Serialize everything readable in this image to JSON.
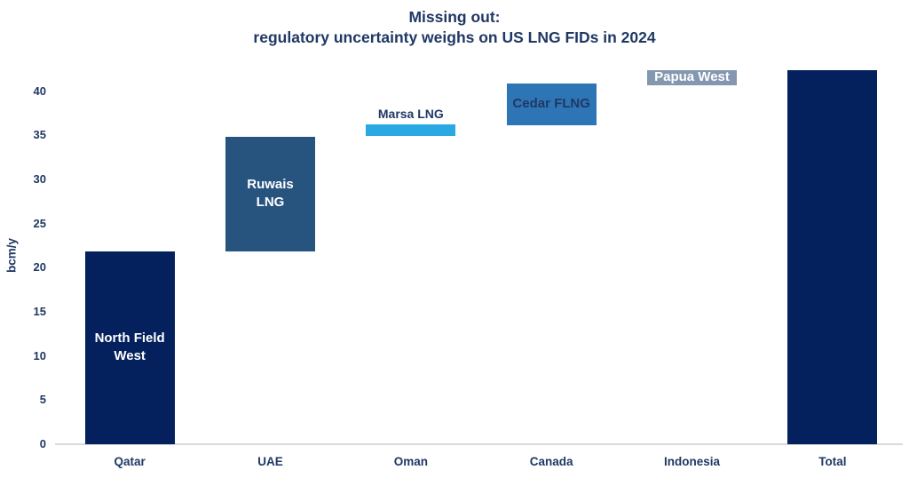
{
  "title": {
    "line1": "Missing out:",
    "line2": "regulatory uncertainty weighs on US LNG FIDs in 2024"
  },
  "chart_data": {
    "type": "bar",
    "subtype": "waterfall",
    "title": "Missing out: regulatory uncertainty weighs on US LNG FIDs in 2024",
    "xlabel": "",
    "ylabel": "bcm/y",
    "ylim": [
      0,
      42.5
    ],
    "yticks": [
      0,
      5,
      10,
      15,
      20,
      25,
      30,
      35,
      40
    ],
    "grid": false,
    "legend": "none",
    "categories": [
      "Qatar",
      "UAE",
      "Oman",
      "Canada",
      "Indonesia",
      "Total"
    ],
    "bars": [
      {
        "category": "Qatar",
        "project": "North Field West",
        "label_lines": [
          "North Field",
          "West"
        ],
        "start": 0,
        "end": 21.9,
        "value": 21.9,
        "color": "#04215E",
        "label_color": "#FFFFFF",
        "label_position": "inside"
      },
      {
        "category": "UAE",
        "project": "Ruwais LNG",
        "label_lines": [
          "Ruwais",
          "LNG"
        ],
        "start": 21.9,
        "end": 34.8,
        "value": 12.9,
        "color": "#27537F",
        "label_color": "#FFFFFF",
        "label_position": "inside"
      },
      {
        "category": "Oman",
        "project": "Marsa LNG",
        "label_lines": [
          "Marsa LNG"
        ],
        "start": 34.9,
        "end": 36.3,
        "value": 1.4,
        "color": "#29A9E1",
        "label_color": "#1F3864",
        "label_position": "above"
      },
      {
        "category": "Canada",
        "project": "Cedar FLNG",
        "label_lines": [
          "Cedar FLNG"
        ],
        "start": 36.2,
        "end": 40.9,
        "value": 4.7,
        "color": "#2E75B6",
        "label_color": "#1F3864",
        "label_position": "inside"
      },
      {
        "category": "Indonesia",
        "project": "Papua West",
        "label_lines": [
          "Papua West"
        ],
        "start": 40.7,
        "end": 42.4,
        "value": 1.7,
        "color": "#8497B0",
        "label_color": "#FFFFFF",
        "label_position": "inside"
      },
      {
        "category": "Total",
        "project": "",
        "label_lines": [],
        "start": 0,
        "end": 42.4,
        "value": 42.4,
        "color": "#04215E",
        "label_color": "#FFFFFF",
        "label_position": "none"
      }
    ]
  },
  "colors": {
    "text_navy": "#1F3864",
    "bar_navy": "#04215E",
    "bar_steel_blue": "#27537F",
    "bar_light_blue": "#29A9E1",
    "bar_medium_blue": "#2E75B6",
    "bar_gray": "#8497B0",
    "axis_line": "#D9D9D9",
    "background": "#FFFFFF"
  }
}
